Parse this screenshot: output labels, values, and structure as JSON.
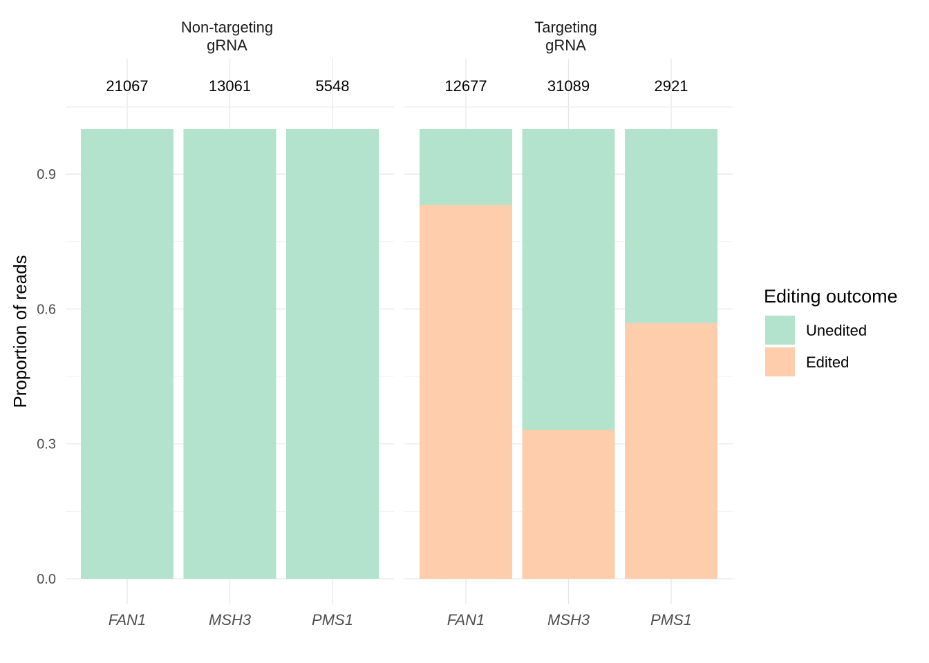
{
  "chart_data": {
    "type": "bar",
    "stacked": true,
    "ylabel": "Proportion of reads",
    "ylim": [
      0,
      1
    ],
    "y_ticks": [
      0.0,
      0.3,
      0.6,
      0.9
    ],
    "y_tick_labels": [
      "0.0",
      "0.3",
      "0.6",
      "0.9"
    ],
    "grid": true,
    "legend": {
      "title": "Editing outcome",
      "position": "right",
      "entries": [
        {
          "name": "Unedited",
          "color": "#b3e2cd"
        },
        {
          "name": "Edited",
          "color": "#fdcdac"
        }
      ]
    },
    "facets": [
      {
        "label_lines": [
          "Non-targeting",
          "gRNA"
        ],
        "categories": [
          "FAN1",
          "MSH3",
          "PMS1"
        ],
        "counts": [
          "21067",
          "13061",
          "5548"
        ],
        "series": [
          {
            "name": "Edited",
            "values": [
              0.0,
              0.0,
              0.0
            ]
          },
          {
            "name": "Unedited",
            "values": [
              1.0,
              1.0,
              1.0
            ]
          }
        ]
      },
      {
        "label_lines": [
          "Targeting",
          "gRNA"
        ],
        "categories": [
          "FAN1",
          "MSH3",
          "PMS1"
        ],
        "counts": [
          "12677",
          "31089",
          "2921"
        ],
        "series": [
          {
            "name": "Edited",
            "values": [
              0.831,
              0.331,
              0.569
            ]
          },
          {
            "name": "Unedited",
            "values": [
              0.169,
              0.669,
              0.431
            ]
          }
        ]
      }
    ]
  }
}
